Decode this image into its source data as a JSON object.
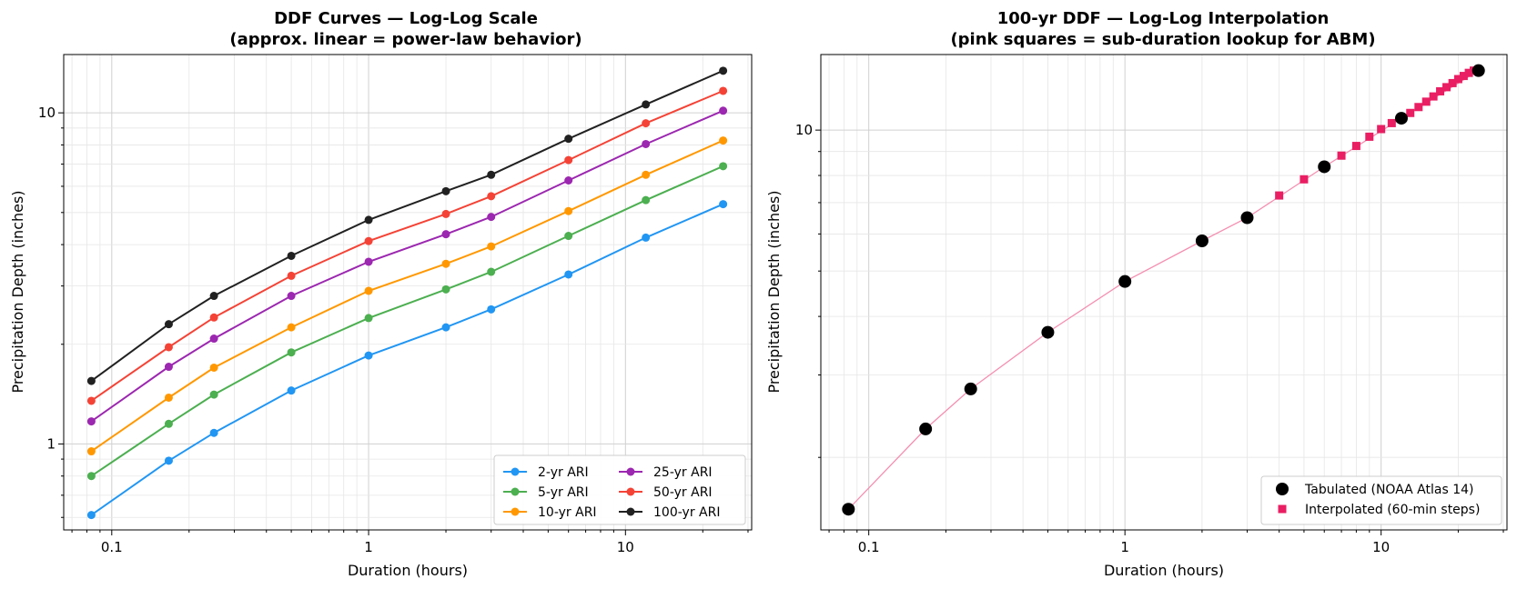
{
  "chart_data": [
    {
      "type": "line",
      "title": "DDF Curves — Log-Log Scale",
      "subtitle": "(approx. linear = power-law behavior)",
      "xlabel": "Duration (hours)",
      "ylabel": "Precipitation Depth (inches)",
      "xscale": "log",
      "yscale": "log",
      "xlim": [
        0.065,
        31
      ],
      "ylim": [
        0.55,
        15
      ],
      "xticks": [
        {
          "value": 0.1,
          "label": "0.1"
        },
        {
          "value": 1,
          "label": "1"
        },
        {
          "value": 10,
          "label": "10"
        }
      ],
      "yticks": [
        {
          "value": 1,
          "label": "1"
        },
        {
          "value": 10,
          "label": "10"
        }
      ],
      "grid": true,
      "legend_position": "lower-right",
      "x": [
        0.0833,
        0.1667,
        0.25,
        0.5,
        1,
        2,
        3,
        6,
        12,
        24
      ],
      "series": [
        {
          "name": "2-yr ARI",
          "color": "#2196F3",
          "values": [
            0.61,
            0.89,
            1.08,
            1.45,
            1.85,
            2.25,
            2.55,
            3.25,
            4.2,
            5.3
          ]
        },
        {
          "name": "5-yr ARI",
          "color": "#4CAF50",
          "values": [
            0.8,
            1.15,
            1.41,
            1.89,
            2.4,
            2.93,
            3.31,
            4.25,
            5.45,
            6.9
          ]
        },
        {
          "name": "10-yr ARI",
          "color": "#FF9800",
          "values": [
            0.95,
            1.38,
            1.7,
            2.25,
            2.9,
            3.5,
            3.95,
            5.05,
            6.5,
            8.25
          ]
        },
        {
          "name": "25-yr ARI",
          "color": "#9C27B0",
          "values": [
            1.17,
            1.71,
            2.08,
            2.8,
            3.55,
            4.3,
            4.85,
            6.25,
            8.05,
            10.15
          ]
        },
        {
          "name": "50-yr ARI",
          "color": "#F44336",
          "values": [
            1.35,
            1.96,
            2.41,
            3.22,
            4.1,
            4.95,
            5.6,
            7.2,
            9.3,
            11.65
          ]
        },
        {
          "name": "100-yr ARI",
          "color": "#212121",
          "values": [
            1.55,
            2.3,
            2.8,
            3.7,
            4.75,
            5.8,
            6.5,
            8.35,
            10.6,
            13.4
          ]
        }
      ]
    },
    {
      "type": "line",
      "title": "100-yr DDF — Log-Log Interpolation",
      "subtitle": "(pink squares = sub-duration lookup for ABM)",
      "xlabel": "Duration (hours)",
      "ylabel": "Precipitation Depth (inches)",
      "xscale": "log",
      "yscale": "log",
      "xlim": [
        0.065,
        31
      ],
      "ylim": [
        1.4,
        14.5
      ],
      "xticks": [
        {
          "value": 0.1,
          "label": "0.1"
        },
        {
          "value": 1,
          "label": "1"
        },
        {
          "value": 10,
          "label": "10"
        }
      ],
      "yticks": [
        {
          "value": 10,
          "label": "10"
        }
      ],
      "grid": true,
      "legend_position": "lower-right",
      "line_color": "#F48FB1",
      "series": [
        {
          "name": "Tabulated (NOAA Atlas 14)",
          "color": "#000000",
          "marker": "circle",
          "x": [
            0.0833,
            0.1667,
            0.25,
            0.5,
            1,
            2,
            3,
            6,
            12,
            24
          ],
          "values": [
            1.55,
            2.3,
            2.8,
            3.7,
            4.75,
            5.8,
            6.5,
            8.35,
            10.6,
            13.4
          ]
        },
        {
          "name": "Interpolated (60-min steps)",
          "color": "#E91E63",
          "marker": "square",
          "x": [
            4,
            5,
            7,
            8,
            9,
            10,
            11,
            13,
            14,
            15,
            16,
            17,
            18,
            19,
            20,
            21,
            22,
            23
          ],
          "values": [
            7.25,
            7.85,
            8.82,
            9.25,
            9.68,
            10.05,
            10.35,
            10.88,
            11.2,
            11.5,
            11.8,
            12.1,
            12.35,
            12.6,
            12.85,
            13.05,
            13.25,
            13.4
          ]
        }
      ]
    }
  ]
}
